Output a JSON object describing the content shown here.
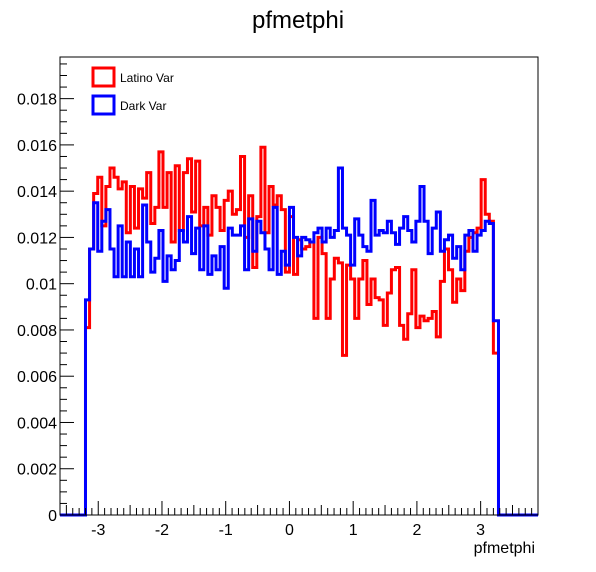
{
  "chart_data": {
    "type": "histogram",
    "title": "pfmetphi",
    "xlabel": "pfmetphi",
    "ylabel": "",
    "xlim": [
      -3.6,
      3.9
    ],
    "ylim": [
      0,
      0.0198
    ],
    "xticks": [
      -3,
      -2,
      -1,
      0,
      1,
      2,
      3
    ],
    "yticks": [
      0,
      0.002,
      0.004,
      0.006,
      0.008,
      0.01,
      0.012,
      0.014,
      0.016,
      0.018
    ],
    "ytick_labels": [
      "0",
      "0.002",
      "0.004",
      "0.006",
      "0.008",
      "0.01",
      "0.012",
      "0.014",
      "0.016",
      "0.018"
    ],
    "grid": false,
    "legend_position": "top-left",
    "bin_range": [
      -3.2,
      3.2
    ],
    "bins": 100,
    "series": [
      {
        "name": "Latino Var",
        "color": "#ff0000",
        "values": [
          0.0081,
          0.0115,
          0.0139,
          0.0146,
          0.0125,
          0.0142,
          0.015,
          0.0146,
          0.0141,
          0.0144,
          0.0122,
          0.0142,
          0.0124,
          0.0141,
          0.0137,
          0.0148,
          0.0126,
          0.0133,
          0.0157,
          0.0133,
          0.0148,
          0.0118,
          0.0151,
          0.0123,
          0.0148,
          0.0154,
          0.0131,
          0.0153,
          0.0125,
          0.0133,
          0.0121,
          0.0138,
          0.0133,
          0.0123,
          0.0136,
          0.014,
          0.013,
          0.0132,
          0.0155,
          0.012,
          0.0138,
          0.0107,
          0.0129,
          0.0159,
          0.0122,
          0.0142,
          0.0134,
          0.0138,
          0.0132,
          0.0105,
          0.0129,
          0.0104,
          0.0119,
          0.0115,
          0.0116,
          0.0118,
          0.0085,
          0.012,
          0.0113,
          0.0085,
          0.0102,
          0.0111,
          0.0109,
          0.0069,
          0.0108,
          0.0102,
          0.0085,
          0.0102,
          0.011,
          0.0091,
          0.0102,
          0.0094,
          0.0093,
          0.0082,
          0.0096,
          0.0106,
          0.0107,
          0.0082,
          0.0076,
          0.0087,
          0.0106,
          0.0081,
          0.0086,
          0.0084,
          0.0085,
          0.0088,
          0.0077,
          0.0101,
          0.0115,
          0.0106,
          0.0092,
          0.0102,
          0.0097,
          0.0114,
          0.012,
          0.0122,
          0.0124,
          0.0145,
          0.013,
          0.0127
        ],
        "tail_value": 0.007
      },
      {
        "name": "Dark Var",
        "color": "#0000ff",
        "values": [
          0.0093,
          0.0115,
          0.0135,
          0.0114,
          0.0127,
          0.0132,
          0.0115,
          0.0103,
          0.0125,
          0.0103,
          0.0118,
          0.0103,
          0.0115,
          0.0103,
          0.0134,
          0.0118,
          0.0105,
          0.0111,
          0.0123,
          0.0101,
          0.0112,
          0.0106,
          0.011,
          0.0123,
          0.0118,
          0.0129,
          0.0113,
          0.0124,
          0.0106,
          0.0125,
          0.0104,
          0.0112,
          0.0106,
          0.0116,
          0.0098,
          0.0124,
          0.0121,
          0.0121,
          0.0125,
          0.0106,
          0.0128,
          0.0114,
          0.0127,
          0.0122,
          0.0115,
          0.0106,
          0.0133,
          0.0104,
          0.0114,
          0.0108,
          0.0133,
          0.012,
          0.0112,
          0.012,
          0.0119,
          0.0118,
          0.0122,
          0.0124,
          0.0118,
          0.0124,
          0.012,
          0.0123,
          0.015,
          0.0124,
          0.0121,
          0.0108,
          0.0128,
          0.0121,
          0.0116,
          0.0114,
          0.0136,
          0.0121,
          0.0123,
          0.0122,
          0.0127,
          0.0122,
          0.0117,
          0.0124,
          0.0129,
          0.0123,
          0.0118,
          0.0127,
          0.0142,
          0.0127,
          0.0113,
          0.0124,
          0.0131,
          0.0114,
          0.0119,
          0.0121,
          0.0111,
          0.0116,
          0.0106,
          0.0121,
          0.0123,
          0.0114,
          0.0121,
          0.0123,
          0.0127,
          0.0126
        ],
        "tail_value": 0.0084
      }
    ]
  }
}
